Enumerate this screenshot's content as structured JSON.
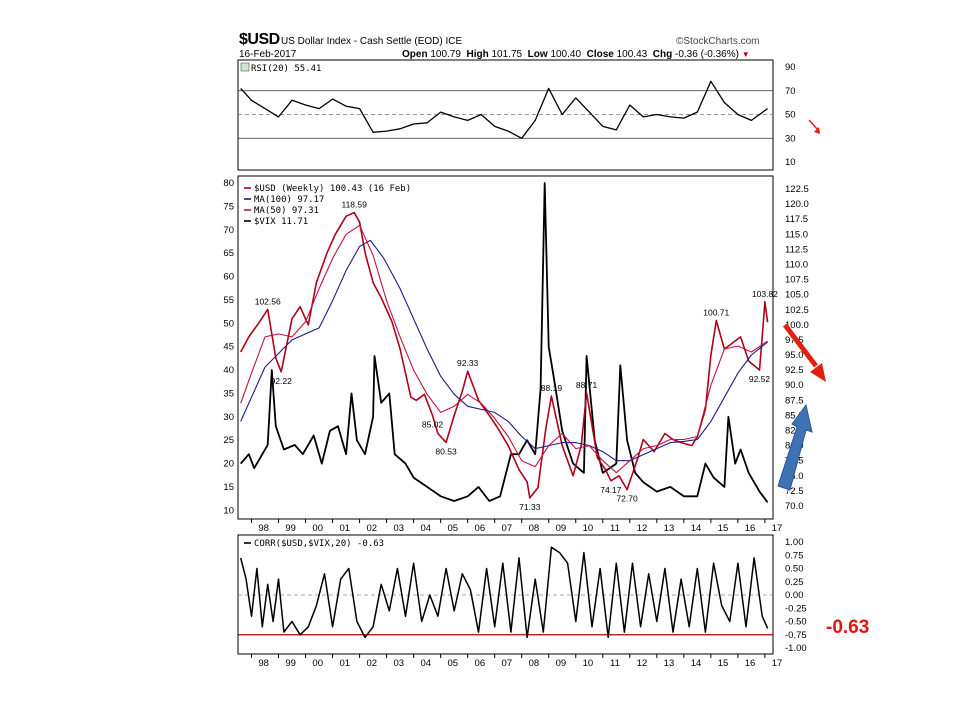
{
  "header": {
    "symbol": "$USD",
    "name": "US Dollar Index - Cash Settle (EOD) ICE",
    "brand": "©StockCharts.com",
    "date": "16-Feb-2017",
    "open_label": "Open",
    "open": "100.79",
    "high_label": "High",
    "high": "101.75",
    "low_label": "Low",
    "low": "100.40",
    "close_label": "Close",
    "close": "100.43",
    "chg_label": "Chg",
    "chg": "-0.36 (-0.36%)"
  },
  "callout": {
    "corr_value": "-0.63"
  },
  "colors": {
    "price": "#b0001a",
    "ma100": "#1a1a8c",
    "ma50": "#c0143c",
    "vix": "#000000",
    "ref_line": "#b00000",
    "red_arrow": "#e02010",
    "blue_arrow": "#3f72b4"
  },
  "chart_data": [
    {
      "type": "line",
      "panel": "rsi",
      "legend": "RSI(20) 55.41",
      "yticks": [
        10,
        30,
        50,
        70,
        90
      ],
      "ylim": [
        10,
        90
      ],
      "ref_lines": [
        30,
        50,
        70
      ],
      "x": [
        1997.6,
        1998,
        1998.5,
        1999,
        1999.5,
        2000,
        2000.5,
        2001,
        2001.5,
        2002,
        2002.5,
        2003,
        2003.5,
        2004,
        2004.5,
        2005,
        2005.5,
        2006,
        2006.5,
        2007,
        2007.5,
        2008,
        2008.5,
        2009,
        2009.5,
        2010,
        2010.5,
        2011,
        2011.5,
        2012,
        2012.5,
        2013,
        2013.5,
        2014,
        2014.5,
        2015,
        2015.5,
        2016,
        2016.5,
        2017.1
      ],
      "values": [
        72,
        62,
        55,
        48,
        62,
        58,
        55,
        63,
        57,
        55,
        35,
        36,
        38,
        42,
        43,
        52,
        48,
        45,
        50,
        40,
        36,
        30,
        45,
        72,
        50,
        64,
        52,
        40,
        37,
        58,
        48,
        50,
        48,
        47,
        52,
        78,
        60,
        50,
        45,
        55
      ]
    },
    {
      "type": "line",
      "panel": "price",
      "legend": [
        "$USD (Weekly) 100.43 (16 Feb)",
        "MA(100) 97.17",
        "MA(50) 97.31",
        "$VIX 11.71"
      ],
      "left_yticks": [
        10,
        15,
        20,
        25,
        30,
        35,
        40,
        45,
        50,
        55,
        60,
        65,
        70,
        75,
        80
      ],
      "left_ylim": [
        9,
        80
      ],
      "right_yticks": [
        70.0,
        72.5,
        75.0,
        77.5,
        80.0,
        82.5,
        85.0,
        87.5,
        90.0,
        92.5,
        95.0,
        97.5,
        100.0,
        102.5,
        105.0,
        107.5,
        110.0,
        112.5,
        115.0,
        117.5,
        120.0,
        122.5
      ],
      "right_ylim": [
        68.5,
        123.5
      ],
      "xticks": [
        "98",
        "99",
        "00",
        "01",
        "02",
        "03",
        "04",
        "05",
        "06",
        "07",
        "08",
        "09",
        "10",
        "11",
        "12",
        "13",
        "14",
        "15",
        "16",
        "17"
      ],
      "series": [
        {
          "name": "$USD",
          "x": [
            1997.6,
            1997.9,
            1998.3,
            1998.6,
            1998.9,
            1999.1,
            1999.5,
            1999.8,
            2000.1,
            2000.4,
            2000.8,
            2001.1,
            2001.5,
            2001.8,
            2002.0,
            2002.2,
            2002.5,
            2002.8,
            2003.2,
            2003.5,
            2003.9,
            2004.1,
            2004.4,
            2004.7,
            2004.9,
            2005.2,
            2005.5,
            2005.8,
            2006.0,
            2006.4,
            2006.8,
            2007.1,
            2007.5,
            2007.9,
            2008.2,
            2008.3,
            2008.6,
            2008.9,
            2009.1,
            2009.5,
            2009.9,
            2010.2,
            2010.4,
            2010.8,
            2011.1,
            2011.3,
            2011.6,
            2011.9,
            2012.3,
            2012.5,
            2012.9,
            2013.3,
            2013.6,
            2013.9,
            2014.3,
            2014.5,
            2014.8,
            2015.0,
            2015.2,
            2015.5,
            2015.8,
            2016.1,
            2016.4,
            2016.8,
            2016.9,
            2017.0,
            2017.1
          ],
          "values": [
            95.5,
            98.0,
            100.5,
            102.56,
            94.5,
            92.22,
            101.0,
            103.0,
            100.0,
            107.0,
            112.0,
            115.0,
            118.0,
            118.59,
            117.0,
            112.0,
            107.0,
            104.5,
            100.5,
            96.0,
            88.0,
            87.5,
            88.5,
            85.02,
            82.0,
            80.53,
            85.0,
            89.0,
            92.33,
            87.5,
            85.0,
            83.0,
            80.0,
            76.0,
            74.0,
            71.33,
            73.0,
            83.0,
            88.19,
            80.0,
            75.0,
            80.0,
            88.71,
            78.0,
            76.0,
            74.17,
            75.0,
            72.7,
            78.0,
            81.0,
            79.0,
            82.0,
            81.0,
            80.5,
            80.0,
            81.5,
            86.0,
            95.0,
            100.71,
            96.0,
            97.0,
            98.0,
            94.0,
            92.52,
            98.0,
            103.82,
            100.43
          ]
        },
        {
          "name": "MA(100)",
          "x": [
            1997.6,
            1998.5,
            1999.5,
            2000.5,
            2001.0,
            2001.5,
            2002.0,
            2002.4,
            2002.9,
            2003.5,
            2004.0,
            2004.5,
            2005.0,
            2005.5,
            2006.0,
            2006.5,
            2007.0,
            2007.5,
            2008.0,
            2008.5,
            2009.0,
            2009.5,
            2010.0,
            2010.5,
            2011.0,
            2011.5,
            2012.0,
            2012.5,
            2013.0,
            2013.5,
            2014.0,
            2014.5,
            2015.0,
            2015.5,
            2016.0,
            2016.5,
            2017.1
          ],
          "values": [
            84.0,
            93.0,
            97.5,
            99.5,
            104.0,
            109.0,
            113.0,
            114.0,
            111.0,
            106.0,
            101.0,
            96.0,
            91.5,
            88.5,
            86.5,
            86.0,
            85.5,
            84.0,
            81.5,
            79.5,
            80.0,
            80.5,
            80.5,
            80.0,
            79.0,
            77.5,
            77.5,
            78.5,
            79.5,
            80.5,
            80.7,
            81.0,
            84.0,
            88.0,
            92.0,
            95.0,
            97.17
          ]
        },
        {
          "name": "MA(50)",
          "x": [
            1997.6,
            1998.0,
            1998.5,
            1999.0,
            1999.5,
            2000.0,
            2000.5,
            2001.0,
            2001.5,
            2002.0,
            2002.5,
            2003.0,
            2003.5,
            2004.0,
            2004.5,
            2005.0,
            2005.5,
            2006.0,
            2006.5,
            2007.0,
            2007.5,
            2008.0,
            2008.5,
            2009.0,
            2009.5,
            2010.0,
            2010.5,
            2011.0,
            2011.5,
            2012.0,
            2012.5,
            2013.0,
            2013.5,
            2014.0,
            2014.5,
            2015.0,
            2015.5,
            2016.0,
            2016.5,
            2017.1
          ],
          "values": [
            87.0,
            92.0,
            98.0,
            98.5,
            98.0,
            100.5,
            106.0,
            111.0,
            115.0,
            116.5,
            111.5,
            104.0,
            98.0,
            92.5,
            88.5,
            85.5,
            86.5,
            88.5,
            87.0,
            84.5,
            81.5,
            77.5,
            76.5,
            80.0,
            82.0,
            79.5,
            80.0,
            77.5,
            75.5,
            77.5,
            79.5,
            80.0,
            81.0,
            81.0,
            81.5,
            90.0,
            96.0,
            96.5,
            95.5,
            97.31
          ]
        },
        {
          "name": "$VIX",
          "x": [
            1997.6,
            1997.9,
            1998.1,
            1998.6,
            1998.75,
            1998.9,
            1999.2,
            1999.6,
            1999.9,
            2000.3,
            2000.6,
            2000.9,
            2001.2,
            2001.5,
            2001.7,
            2001.9,
            2002.2,
            2002.5,
            2002.55,
            2002.8,
            2003.1,
            2003.3,
            2003.7,
            2004.0,
            2004.5,
            2005.0,
            2005.5,
            2006.0,
            2006.4,
            2006.8,
            2007.2,
            2007.6,
            2007.9,
            2008.2,
            2008.5,
            2008.7,
            2008.85,
            2009.0,
            2009.2,
            2009.5,
            2009.9,
            2010.3,
            2010.4,
            2010.7,
            2011.0,
            2011.5,
            2011.65,
            2011.9,
            2012.2,
            2012.5,
            2013.0,
            2013.5,
            2014.0,
            2014.5,
            2014.8,
            2015.1,
            2015.5,
            2015.65,
            2015.9,
            2016.1,
            2016.4,
            2016.8,
            2017.1
          ],
          "values": [
            20,
            22,
            19,
            24,
            40,
            28,
            23,
            24,
            22,
            26,
            20,
            27,
            28,
            22,
            35,
            25,
            22,
            30,
            43,
            33,
            35,
            22,
            20,
            17,
            15,
            13,
            12,
            13,
            15,
            12,
            13,
            22,
            22,
            25,
            22,
            36,
            80,
            45,
            38,
            27,
            20,
            18,
            43,
            25,
            18,
            20,
            41,
            25,
            18,
            16,
            14,
            15,
            13,
            13,
            20,
            17,
            15,
            30,
            20,
            23,
            18,
            14,
            11.71
          ]
        }
      ],
      "annotations": [
        {
          "text": "102.56",
          "x": 1998.6,
          "y": 102.56
        },
        {
          "text": "92.22",
          "x": 1999.1,
          "y": 92.22
        },
        {
          "text": "118.59",
          "x": 2001.8,
          "y": 118.59
        },
        {
          "text": "85.02",
          "x": 2004.7,
          "y": 85.02
        },
        {
          "text": "80.53",
          "x": 2005.2,
          "y": 80.53
        },
        {
          "text": "92.33",
          "x": 2006.0,
          "y": 92.33
        },
        {
          "text": "71.33",
          "x": 2008.3,
          "y": 71.33
        },
        {
          "text": "88.19",
          "x": 2009.1,
          "y": 88.19
        },
        {
          "text": "88.71",
          "x": 2010.4,
          "y": 88.71
        },
        {
          "text": "74.17",
          "x": 2011.3,
          "y": 74.17
        },
        {
          "text": "72.70",
          "x": 2011.9,
          "y": 72.7
        },
        {
          "text": "100.71",
          "x": 2015.2,
          "y": 100.71
        },
        {
          "text": "92.52",
          "x": 2016.8,
          "y": 92.52
        },
        {
          "text": "103.82",
          "x": 2017.0,
          "y": 103.82
        }
      ]
    },
    {
      "type": "line",
      "panel": "corr",
      "legend": "CORR($USD,$VIX,20) -0.63",
      "yticks": [
        "1.00",
        "0.75",
        "0.50",
        "0.25",
        "0.00",
        "-0.25",
        "-0.50",
        "-0.75",
        "-1.00"
      ],
      "ylim": [
        -1.0,
        1.0
      ],
      "ref_line": -0.75,
      "xticks": [
        "98",
        "99",
        "00",
        "01",
        "02",
        "03",
        "04",
        "05",
        "06",
        "07",
        "08",
        "09",
        "10",
        "11",
        "12",
        "13",
        "14",
        "15",
        "16",
        "17"
      ],
      "x": [
        1997.6,
        1997.8,
        1998.0,
        1998.2,
        1998.4,
        1998.6,
        1998.8,
        1999.0,
        1999.2,
        1999.5,
        1999.8,
        2000.1,
        2000.4,
        2000.7,
        2001.0,
        2001.3,
        2001.6,
        2001.9,
        2002.2,
        2002.5,
        2002.8,
        2003.1,
        2003.4,
        2003.7,
        2004.0,
        2004.3,
        2004.6,
        2004.9,
        2005.2,
        2005.5,
        2005.8,
        2006.1,
        2006.4,
        2006.7,
        2007.0,
        2007.3,
        2007.6,
        2007.9,
        2008.2,
        2008.5,
        2008.8,
        2009.1,
        2009.4,
        2009.7,
        2010.0,
        2010.3,
        2010.6,
        2010.9,
        2011.2,
        2011.5,
        2011.8,
        2012.1,
        2012.4,
        2012.7,
        2013.0,
        2013.3,
        2013.6,
        2013.9,
        2014.2,
        2014.5,
        2014.8,
        2015.1,
        2015.4,
        2015.7,
        2016.0,
        2016.3,
        2016.6,
        2016.9,
        2017.1
      ],
      "values": [
        0.7,
        0.3,
        -0.4,
        0.5,
        -0.6,
        0.2,
        -0.5,
        0.3,
        -0.7,
        -0.5,
        -0.75,
        -0.6,
        -0.2,
        0.4,
        -0.6,
        0.3,
        0.5,
        -0.5,
        -0.8,
        -0.6,
        0.2,
        -0.3,
        0.5,
        -0.4,
        0.6,
        -0.5,
        0.0,
        -0.4,
        0.5,
        -0.3,
        0.4,
        0.1,
        -0.7,
        0.5,
        -0.6,
        0.6,
        -0.7,
        0.7,
        -0.8,
        0.3,
        -0.7,
        0.9,
        0.8,
        0.6,
        -0.5,
        0.8,
        -0.6,
        0.5,
        -0.8,
        0.6,
        -0.7,
        0.6,
        -0.6,
        0.4,
        -0.5,
        0.5,
        -0.7,
        0.3,
        -0.6,
        0.5,
        -0.7,
        0.6,
        -0.2,
        -0.5,
        0.6,
        -0.6,
        0.7,
        -0.4,
        -0.63
      ]
    }
  ]
}
